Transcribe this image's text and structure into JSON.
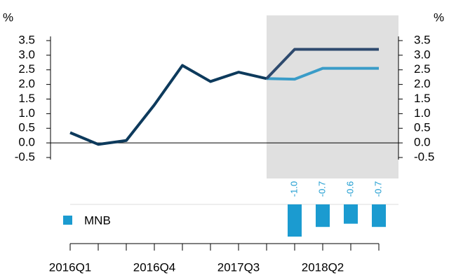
{
  "chart_data": [
    {
      "type": "line",
      "ylabel": "%",
      "y2label": "%",
      "categories": [
        "2016Q1",
        null,
        null,
        "2016Q4",
        null,
        null,
        "2017Q3",
        null,
        null,
        "2018Q2",
        null,
        null
      ],
      "series": [
        {
          "color": "#0d3a5c",
          "values": [
            0.35,
            -0.05,
            0.08,
            1.3,
            2.65,
            2.1,
            2.42,
            2.2,
            null,
            null,
            null,
            null
          ]
        },
        {
          "color": "#3a9cc8",
          "values": [
            null,
            null,
            null,
            null,
            null,
            null,
            null,
            2.2,
            2.18,
            2.55,
            2.55,
            2.55
          ]
        },
        {
          "color": "#2e4a6e",
          "values": [
            null,
            null,
            null,
            null,
            null,
            null,
            null,
            2.2,
            3.2,
            3.2,
            3.2,
            3.2
          ]
        }
      ],
      "ylim": [
        -0.5,
        3.5
      ],
      "yticks": [
        3.5,
        {
          "value": 3,
          "label": "3.0"
        },
        2.5,
        {
          "value": 2,
          "label": "2.0"
        },
        1.5,
        {
          "value": 1,
          "label": "1.0"
        },
        0.5,
        {
          "value": 0,
          "label": "0.0"
        },
        -0.5
      ],
      "y2lim": [
        -0.5,
        3.5
      ],
      "y2ticks": [
        3.5,
        {
          "value": 3,
          "label": "3.0"
        },
        2.5,
        {
          "value": 2,
          "label": "2.0"
        },
        1.5,
        {
          "value": 1,
          "label": "1.0"
        },
        0.5,
        {
          "value": 0,
          "label": "0.0"
        },
        -0.5
      ]
    },
    {
      "type": "bar",
      "series": [
        {
          "name": "MNB",
          "color": "#1b9bd0",
          "values": [
            null,
            null,
            null,
            null,
            null,
            null,
            null,
            null,
            -1.0,
            -0.7,
            -0.6,
            -0.7
          ],
          "value_labels": [
            null,
            null,
            null,
            null,
            null,
            null,
            null,
            null,
            "-1.0",
            "-0.7",
            "-0.6",
            "-0.7"
          ]
        }
      ],
      "ylim": [
        -1,
        0
      ]
    }
  ]
}
